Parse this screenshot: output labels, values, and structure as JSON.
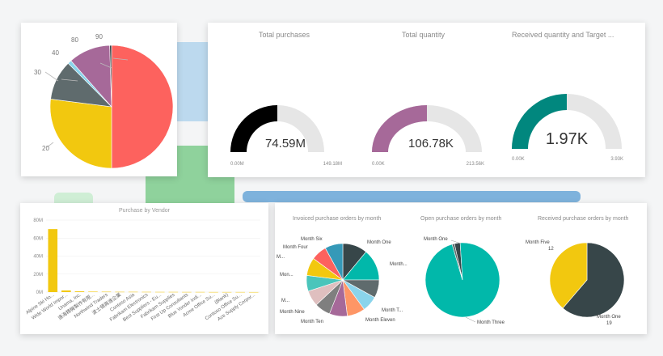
{
  "colors": {
    "background": "#f4f5f6",
    "card": "#ffffff",
    "deco_blue": "#bcd9ee",
    "deco_green": "#8fd29c",
    "deco_light_green": "#cfeed5",
    "deco_blue_bar": "#7eb2dc",
    "gauge_track": "#e6e6e6"
  },
  "pie_top": {
    "labels": [
      "90",
      "80",
      "40",
      "30",
      "20"
    ],
    "slices": [
      {
        "value": 50,
        "color": "#fd625e"
      },
      {
        "value": 27,
        "color": "#f2c80f"
      },
      {
        "value": 10.5,
        "color": "#5f6b6d"
      },
      {
        "value": 1,
        "color": "#8ad4eb"
      },
      {
        "value": 11,
        "color": "#a66999"
      },
      {
        "value": 0.5,
        "color": "#374649"
      }
    ]
  },
  "gauges": [
    {
      "title": "Total purchases",
      "value_text": "74.59M",
      "min_text": "0.00M",
      "max_text": "149.18M",
      "fraction": 0.5,
      "color": "#000000"
    },
    {
      "title": "Total quantity",
      "value_text": "106.78K",
      "min_text": "0.00K",
      "max_text": "213.56K",
      "fraction": 0.5,
      "color": "#a66999"
    },
    {
      "title": "Received quantity and Target ...",
      "value_text": "1.97K",
      "min_text": "0.00K",
      "max_text": "3.93K",
      "fraction": 0.5,
      "color": "#01877e"
    }
  ],
  "vendor_chart": {
    "chart_data": {
      "type": "bar",
      "title": "Purchase by Vendor",
      "categories": [
        "Alpine Ski Ho...",
        "Wide World Impor...",
        "Unama, Inc.",
        "遠海精機製作有限...",
        "Northwind Traders",
        "波士頓高速企業",
        "Contoso Asia",
        "Fabrikam Electronics",
        "Best Suppliers - Eu...",
        "Fabrikam Supplies",
        "First Up Consultants",
        "Blue Yonder Indi...",
        "Acme Office Su...",
        "(Blank)",
        "Contoso Office Su...",
        "Ace Supply Corpor..."
      ],
      "values": [
        70,
        1.8,
        0.8,
        0.5,
        0.4,
        0.3,
        0.3,
        0.25,
        0.2,
        0.2,
        0.15,
        0.15,
        0.1,
        0.1,
        0.1,
        0.05
      ],
      "ylim": [
        0,
        80
      ],
      "yticks": [
        "0M",
        "20M",
        "40M",
        "60M",
        "80M"
      ],
      "bar_color": "#f2c80f"
    }
  },
  "invoiced_pie": {
    "title": "Invoiced purchase orders by month",
    "labels": [
      "Month One",
      "Month...",
      "Month T...",
      "Month Eleven",
      "Month Ten",
      "Month Nine",
      "M...",
      "Mon...",
      "M...",
      "Month Four",
      "Month Six"
    ],
    "slices": [
      {
        "value": 11,
        "color": "#374649"
      },
      {
        "value": 14,
        "color": "#01b8aa"
      },
      {
        "value": 8,
        "color": "#5f6b6d"
      },
      {
        "value": 7,
        "color": "#8ad4eb"
      },
      {
        "value": 8,
        "color": "#fe9666"
      },
      {
        "value": 8,
        "color": "#a66999"
      },
      {
        "value": 7,
        "color": "#7f7f7f"
      },
      {
        "value": 7,
        "color": "#dfbfbf"
      },
      {
        "value": 7,
        "color": "#4ac5bb"
      },
      {
        "value": 8,
        "color": "#f2c80f"
      },
      {
        "value": 7,
        "color": "#fd625e"
      },
      {
        "value": 8,
        "color": "#3599b8"
      }
    ]
  },
  "open_pie": {
    "title": "Open purchase orders by month",
    "labels": [
      "Month One",
      "Month Three"
    ],
    "slices": [
      {
        "value": 2.5,
        "color": "#374649"
      },
      {
        "value": 96.5,
        "color": "#01b8aa"
      },
      {
        "value": 1,
        "color": "#5f6b6d"
      }
    ]
  },
  "received_pie": {
    "title": "Received purchase orders by month",
    "label_a": "Month Five",
    "value_a": "12",
    "label_b": "Month One",
    "value_b": "19",
    "slices": [
      {
        "value": 19,
        "color": "#374649"
      },
      {
        "value": 12,
        "color": "#f2c80f"
      }
    ]
  }
}
